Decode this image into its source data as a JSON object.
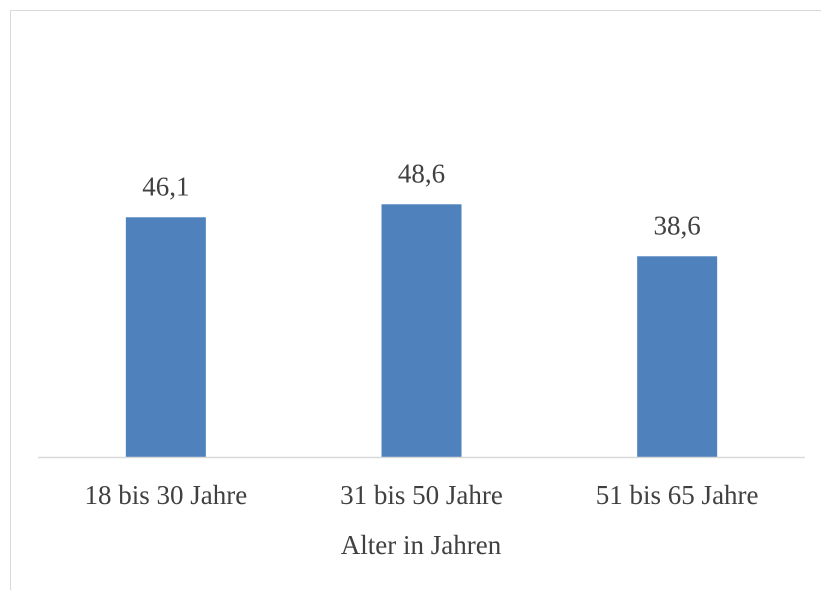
{
  "chart_data": {
    "type": "bar",
    "x_label": "Alter in Jahren",
    "categories": [
      "18 bis 30 Jahre",
      "31 bis 50 Jahre",
      "51 bis 65 Jahre"
    ],
    "values": [
      46.1,
      48.6,
      38.6
    ],
    "value_labels": [
      "46,1",
      "48,6",
      "38,6"
    ],
    "color": "#4f81bd"
  }
}
